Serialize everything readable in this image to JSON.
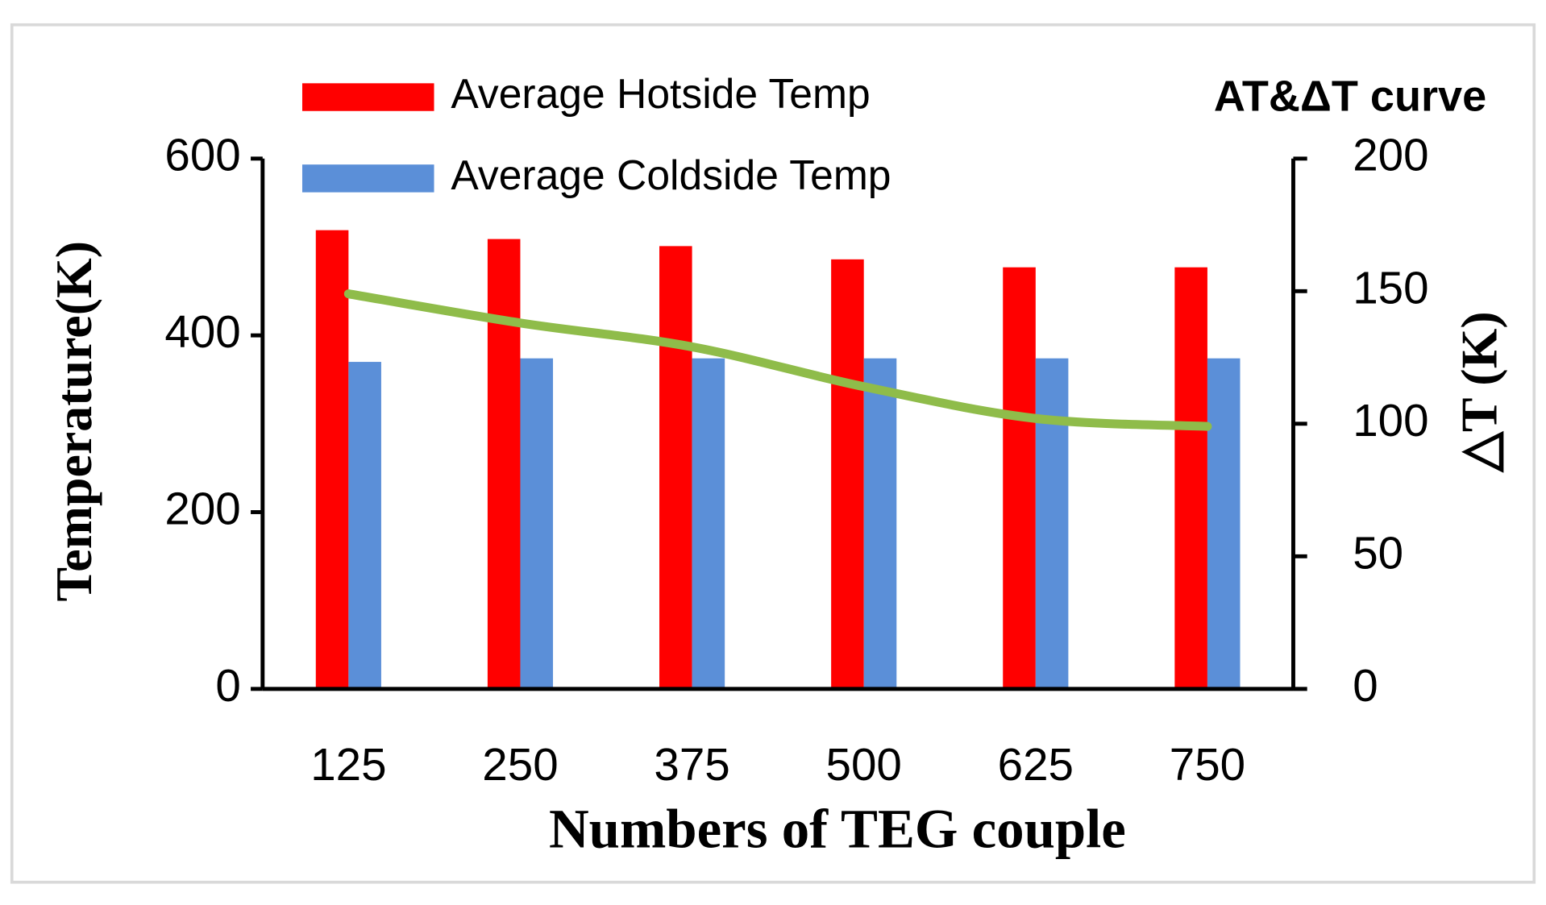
{
  "chart_data": {
    "type": "bar",
    "x_label": "Numbers of TEG couple",
    "y_label": "Temperature(K)",
    "y2_label": "△T (K)",
    "categories": [
      "125",
      "250",
      "375",
      "500",
      "625",
      "750"
    ],
    "series": [
      {
        "name": "Average Hotside Temp",
        "color": "#ff0000",
        "axis": "y",
        "values": [
          519,
          509,
          501,
          486,
          477,
          477
        ]
      },
      {
        "name": "Average Coldside Temp",
        "color": "#5b8fd8",
        "axis": "y",
        "values": [
          370,
          374,
          374,
          374,
          374,
          374
        ]
      },
      {
        "name": "AT&ΔT curve",
        "color": "#8fbc4a",
        "axis": "y2",
        "type": "line",
        "values": [
          149,
          138,
          129,
          114,
          102,
          99
        ]
      }
    ],
    "ylim": [
      0,
      600
    ],
    "yticks": [
      0,
      200,
      400,
      600
    ],
    "y2lim": [
      0,
      200
    ],
    "y2ticks": [
      0,
      50,
      100,
      150,
      200
    ]
  }
}
